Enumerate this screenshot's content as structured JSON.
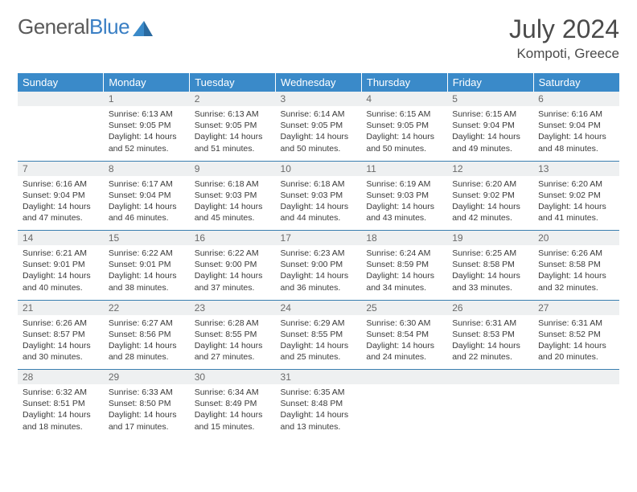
{
  "logo": {
    "text_general": "General",
    "text_blue": "Blue",
    "tri_color": "#3a8ac9"
  },
  "title": "July 2024",
  "location": "Kompoti, Greece",
  "colors": {
    "header_bg": "#3a8ac9",
    "header_fg": "#ffffff",
    "daynum_bg": "#eef0f1",
    "daynum_fg": "#6a6a6a",
    "row_divider": "#3a7fb0",
    "text": "#3a3a3a",
    "page_bg": "#ffffff"
  },
  "typography": {
    "month_title_size": 32,
    "location_size": 17,
    "weekday_size": 13,
    "daynum_size": 12,
    "cell_size": 10.5
  },
  "weekdays": [
    "Sunday",
    "Monday",
    "Tuesday",
    "Wednesday",
    "Thursday",
    "Friday",
    "Saturday"
  ],
  "weeks": [
    [
      null,
      {
        "n": "1",
        "sr": "6:13 AM",
        "ss": "9:05 PM",
        "dl": "14 hours and 52 minutes."
      },
      {
        "n": "2",
        "sr": "6:13 AM",
        "ss": "9:05 PM",
        "dl": "14 hours and 51 minutes."
      },
      {
        "n": "3",
        "sr": "6:14 AM",
        "ss": "9:05 PM",
        "dl": "14 hours and 50 minutes."
      },
      {
        "n": "4",
        "sr": "6:15 AM",
        "ss": "9:05 PM",
        "dl": "14 hours and 50 minutes."
      },
      {
        "n": "5",
        "sr": "6:15 AM",
        "ss": "9:04 PM",
        "dl": "14 hours and 49 minutes."
      },
      {
        "n": "6",
        "sr": "6:16 AM",
        "ss": "9:04 PM",
        "dl": "14 hours and 48 minutes."
      }
    ],
    [
      {
        "n": "7",
        "sr": "6:16 AM",
        "ss": "9:04 PM",
        "dl": "14 hours and 47 minutes."
      },
      {
        "n": "8",
        "sr": "6:17 AM",
        "ss": "9:04 PM",
        "dl": "14 hours and 46 minutes."
      },
      {
        "n": "9",
        "sr": "6:18 AM",
        "ss": "9:03 PM",
        "dl": "14 hours and 45 minutes."
      },
      {
        "n": "10",
        "sr": "6:18 AM",
        "ss": "9:03 PM",
        "dl": "14 hours and 44 minutes."
      },
      {
        "n": "11",
        "sr": "6:19 AM",
        "ss": "9:03 PM",
        "dl": "14 hours and 43 minutes."
      },
      {
        "n": "12",
        "sr": "6:20 AM",
        "ss": "9:02 PM",
        "dl": "14 hours and 42 minutes."
      },
      {
        "n": "13",
        "sr": "6:20 AM",
        "ss": "9:02 PM",
        "dl": "14 hours and 41 minutes."
      }
    ],
    [
      {
        "n": "14",
        "sr": "6:21 AM",
        "ss": "9:01 PM",
        "dl": "14 hours and 40 minutes."
      },
      {
        "n": "15",
        "sr": "6:22 AM",
        "ss": "9:01 PM",
        "dl": "14 hours and 38 minutes."
      },
      {
        "n": "16",
        "sr": "6:22 AM",
        "ss": "9:00 PM",
        "dl": "14 hours and 37 minutes."
      },
      {
        "n": "17",
        "sr": "6:23 AM",
        "ss": "9:00 PM",
        "dl": "14 hours and 36 minutes."
      },
      {
        "n": "18",
        "sr": "6:24 AM",
        "ss": "8:59 PM",
        "dl": "14 hours and 34 minutes."
      },
      {
        "n": "19",
        "sr": "6:25 AM",
        "ss": "8:58 PM",
        "dl": "14 hours and 33 minutes."
      },
      {
        "n": "20",
        "sr": "6:26 AM",
        "ss": "8:58 PM",
        "dl": "14 hours and 32 minutes."
      }
    ],
    [
      {
        "n": "21",
        "sr": "6:26 AM",
        "ss": "8:57 PM",
        "dl": "14 hours and 30 minutes."
      },
      {
        "n": "22",
        "sr": "6:27 AM",
        "ss": "8:56 PM",
        "dl": "14 hours and 28 minutes."
      },
      {
        "n": "23",
        "sr": "6:28 AM",
        "ss": "8:55 PM",
        "dl": "14 hours and 27 minutes."
      },
      {
        "n": "24",
        "sr": "6:29 AM",
        "ss": "8:55 PM",
        "dl": "14 hours and 25 minutes."
      },
      {
        "n": "25",
        "sr": "6:30 AM",
        "ss": "8:54 PM",
        "dl": "14 hours and 24 minutes."
      },
      {
        "n": "26",
        "sr": "6:31 AM",
        "ss": "8:53 PM",
        "dl": "14 hours and 22 minutes."
      },
      {
        "n": "27",
        "sr": "6:31 AM",
        "ss": "8:52 PM",
        "dl": "14 hours and 20 minutes."
      }
    ],
    [
      {
        "n": "28",
        "sr": "6:32 AM",
        "ss": "8:51 PM",
        "dl": "14 hours and 18 minutes."
      },
      {
        "n": "29",
        "sr": "6:33 AM",
        "ss": "8:50 PM",
        "dl": "14 hours and 17 minutes."
      },
      {
        "n": "30",
        "sr": "6:34 AM",
        "ss": "8:49 PM",
        "dl": "14 hours and 15 minutes."
      },
      {
        "n": "31",
        "sr": "6:35 AM",
        "ss": "8:48 PM",
        "dl": "14 hours and 13 minutes."
      },
      null,
      null,
      null
    ]
  ],
  "labels": {
    "sunrise": "Sunrise:",
    "sunset": "Sunset:",
    "daylight": "Daylight:"
  }
}
